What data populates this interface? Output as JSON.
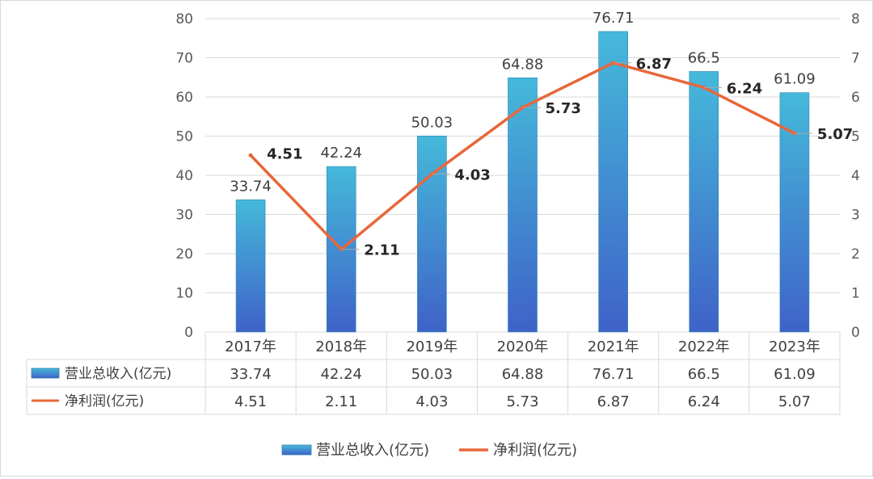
{
  "chart_data": {
    "type": "bar+line",
    "categories": [
      "2017年",
      "2018年",
      "2019年",
      "2020年",
      "2021年",
      "2022年",
      "2023年"
    ],
    "series": [
      {
        "name": "营业总收入(亿元)",
        "type": "bar",
        "axis": "left",
        "color": "#3aa6d0",
        "values": [
          33.74,
          42.24,
          50.03,
          64.88,
          76.71,
          66.5,
          61.09
        ],
        "labels": [
          "33.74",
          "42.24",
          "50.03",
          "64.88",
          "76.71",
          "66.5",
          "61.09"
        ]
      },
      {
        "name": "净利润(亿元)",
        "type": "line",
        "axis": "right",
        "color": "#e8673a",
        "values": [
          4.51,
          2.11,
          4.03,
          5.73,
          6.87,
          6.24,
          5.07
        ],
        "labels": [
          "4.51",
          "2.11",
          "4.03",
          "5.73",
          "6.87",
          "6.24",
          "5.07"
        ]
      }
    ],
    "y_left": {
      "min": 0,
      "max": 80,
      "step": 10,
      "ticks": [
        "0",
        "10",
        "20",
        "30",
        "40",
        "50",
        "60",
        "70",
        "80"
      ]
    },
    "y_right": {
      "min": 0,
      "max": 8,
      "step": 1,
      "ticks": [
        "0",
        "1",
        "2",
        "3",
        "4",
        "5",
        "6",
        "7",
        "8"
      ]
    },
    "grid": true,
    "data_table": true,
    "legend_position": "bottom-center"
  }
}
